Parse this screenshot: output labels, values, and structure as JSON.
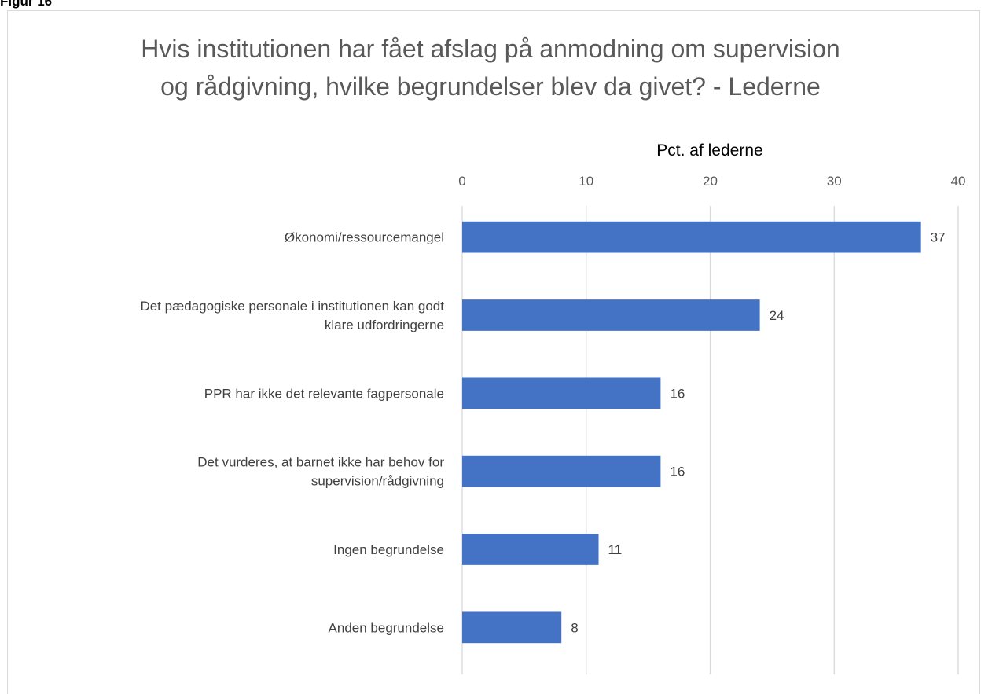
{
  "figure_label": "Figur 16",
  "chart_data": {
    "type": "bar",
    "orientation": "horizontal",
    "title_lines": [
      "Hvis institutionen har fået afslag på anmodning om supervision",
      "og rådgivning, hvilke begrundelser blev da givet? - Lederne"
    ],
    "xlabel": "Pct. af lederne",
    "xaxis_position": "top",
    "xlim": [
      0,
      40
    ],
    "xticks": [
      "0",
      "10",
      "20",
      "30",
      "40"
    ],
    "grid": true,
    "bar_color": "#4472c4",
    "categories": [
      [
        "Økonomi/ressourcemangel"
      ],
      [
        "Det pædagogiske personale i institutionen kan godt",
        "klare udfordringerne"
      ],
      [
        "PPR har ikke det relevante fagpersonale"
      ],
      [
        "Det vurderes, at barnet ikke har behov for",
        "supervision/rådgivning"
      ],
      [
        "Ingen begrundelse"
      ],
      [
        "Anden begrundelse"
      ]
    ],
    "values": [
      37,
      24,
      16,
      16,
      11,
      8
    ],
    "data_labels": [
      "37",
      "24",
      "16",
      "16",
      "11",
      "8"
    ]
  }
}
